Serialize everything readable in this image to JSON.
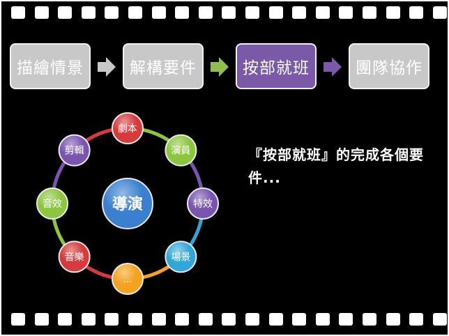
{
  "process": {
    "steps": [
      {
        "label": "描繪情景",
        "active": false
      },
      {
        "label": "解構要件",
        "active": false
      },
      {
        "label": "按部就班",
        "active": true
      },
      {
        "label": "團隊協作",
        "active": false
      }
    ],
    "arrow_colors": [
      "#c8c8c8",
      "#8fbf4a",
      "#7a5aa8"
    ]
  },
  "cycle": {
    "center": {
      "label": "導演",
      "color": "#3a7fd0"
    },
    "nodes": [
      {
        "label": "劇本",
        "color": "#d63a3a"
      },
      {
        "label": "演員",
        "color": "#8cc63f"
      },
      {
        "label": "特效",
        "color": "#7a55b0"
      },
      {
        "label": "場景",
        "color": "#2fa8d8"
      },
      {
        "label": "...",
        "color": "#f5a21e"
      },
      {
        "label": "音樂",
        "color": "#d63a3a"
      },
      {
        "label": "音效",
        "color": "#8cc63f"
      },
      {
        "label": "剪輯",
        "color": "#7a55b0"
      }
    ]
  },
  "description": "『按部就班』的完成各個要件..."
}
